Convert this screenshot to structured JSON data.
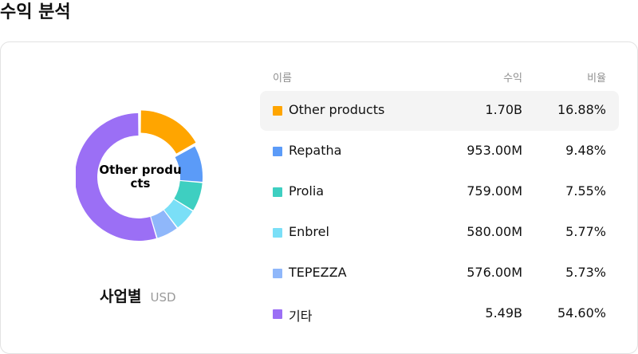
{
  "header": {
    "title": "수익 분석"
  },
  "chart_data": {
    "type": "pie",
    "categories": [
      "Other products",
      "Repatha",
      "Prolia",
      "Enbrel",
      "TEPEZZA",
      "기타"
    ],
    "values": [
      16.88,
      9.48,
      7.55,
      5.77,
      5.73,
      54.6
    ],
    "colors": [
      "#FFA500",
      "#5B9BF8",
      "#3ECFC1",
      "#7ADFF7",
      "#8FB7FA",
      "#9B6FF5"
    ],
    "selected_index": 0,
    "center_label": "Other products",
    "caption": "사업별",
    "unit": "USD"
  },
  "table": {
    "headers": {
      "name": "이름",
      "revenue": "수익",
      "ratio": "비율"
    },
    "rows": [
      {
        "name": "Other products",
        "revenue": "1.70B",
        "ratio": "16.88%",
        "color": "#FFA500"
      },
      {
        "name": "Repatha",
        "revenue": "953.00M",
        "ratio": "9.48%",
        "color": "#5B9BF8"
      },
      {
        "name": "Prolia",
        "revenue": "759.00M",
        "ratio": "7.55%",
        "color": "#3ECFC1"
      },
      {
        "name": "Enbrel",
        "revenue": "580.00M",
        "ratio": "5.77%",
        "color": "#7ADFF7"
      },
      {
        "name": "TEPEZZA",
        "revenue": "576.00M",
        "ratio": "5.73%",
        "color": "#8FB7FA"
      },
      {
        "name": "기타",
        "revenue": "5.49B",
        "ratio": "54.60%",
        "color": "#9B6FF5"
      }
    ]
  }
}
